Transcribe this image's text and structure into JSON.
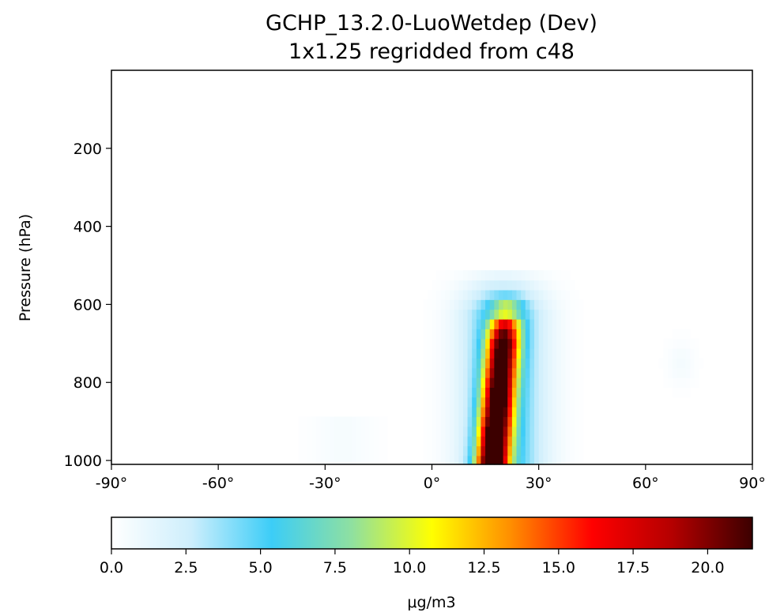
{
  "chart_data": {
    "type": "heatmap",
    "title": "GCHP_13.2.0-LuoWetdep (Dev)",
    "subtitle": "1x1.25 regridded from c48",
    "xlabel": "",
    "ylabel": "Pressure (hPa)",
    "xlim": [
      -90,
      90
    ],
    "ylim": [
      1010,
      0
    ],
    "x_ticks": [
      {
        "value": -90,
        "label": "-90°"
      },
      {
        "value": -60,
        "label": "-60°"
      },
      {
        "value": -30,
        "label": "-30°"
      },
      {
        "value": 0,
        "label": "0°"
      },
      {
        "value": 30,
        "label": "30°"
      },
      {
        "value": 60,
        "label": "60°"
      },
      {
        "value": 90,
        "label": "90°"
      }
    ],
    "y_ticks": [
      {
        "value": 200,
        "label": "200"
      },
      {
        "value": 400,
        "label": "400"
      },
      {
        "value": 600,
        "label": "600"
      },
      {
        "value": 800,
        "label": "800"
      },
      {
        "value": 1000,
        "label": "1000"
      }
    ],
    "pressure_levels": [
      1000,
      975,
      950,
      925,
      900,
      875,
      850,
      825,
      800,
      775,
      750,
      725,
      700,
      675,
      650,
      625,
      600,
      575,
      550,
      525,
      500
    ],
    "colorbar": {
      "label": "μg/m3",
      "range": [
        0,
        21.5
      ],
      "ticks": [
        {
          "value": 0,
          "label": "0.0"
        },
        {
          "value": 2.5,
          "label": "2.5"
        },
        {
          "value": 5,
          "label": "5.0"
        },
        {
          "value": 7.5,
          "label": "7.5"
        },
        {
          "value": 10,
          "label": "10.0"
        },
        {
          "value": 12.5,
          "label": "12.5"
        },
        {
          "value": 15,
          "label": "15.0"
        },
        {
          "value": 17.5,
          "label": "17.5"
        },
        {
          "value": 20,
          "label": "20.0"
        }
      ],
      "colormap": [
        "#ffffff",
        "#cdeefc",
        "#3ccdf7",
        "#8fe0a0",
        "#ffff00",
        "#ff8c00",
        "#ff0000",
        "#b40000",
        "#3c0000"
      ]
    },
    "features": [
      {
        "name": "main plume",
        "lat_center": 19,
        "lat_halfwidth": 4.5,
        "center_tilt_per_100hPa": -1.0,
        "peak": 21.5,
        "pressure_top": 610,
        "pressure_peak": 960
      },
      {
        "name": "broad band",
        "lat_center": 20,
        "lat_halfwidth": 11,
        "peak": 6,
        "pressure_top": 500
      },
      {
        "name": "southern patch",
        "lat_center": -25,
        "lat_halfwidth": 9,
        "peak": 0.5,
        "pressure_top": 880
      },
      {
        "name": "northern patch",
        "lat_center": 70,
        "lat_halfwidth": 4,
        "peak": 0.6,
        "pressure_center": 750
      }
    ]
  }
}
